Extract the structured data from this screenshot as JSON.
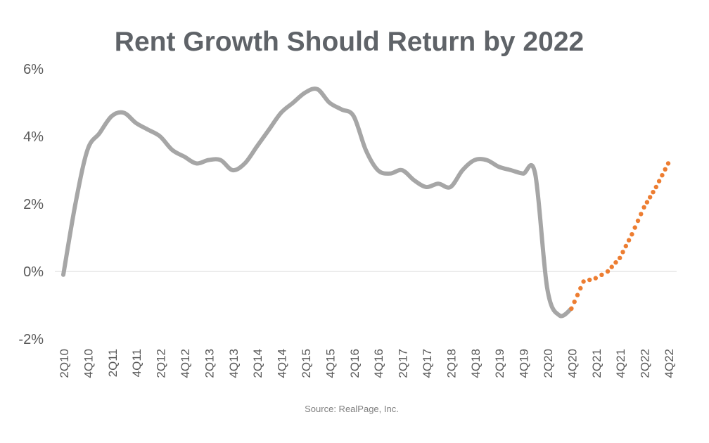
{
  "chart_data": {
    "type": "line",
    "title": "Rent Growth Should Return by 2022",
    "source": "Source: RealPage, Inc.",
    "xlabel": "",
    "ylabel": "",
    "ylim": [
      -2,
      6
    ],
    "y_ticks": [
      "6%",
      "4%",
      "2%",
      "0%",
      "-2%"
    ],
    "y_tick_values": [
      6,
      4,
      2,
      0,
      -2
    ],
    "x_tick_labels": [
      "2Q10",
      "4Q10",
      "2Q11",
      "4Q11",
      "2Q12",
      "4Q12",
      "2Q13",
      "4Q13",
      "2Q14",
      "4Q14",
      "2Q15",
      "4Q15",
      "2Q16",
      "4Q16",
      "2Q17",
      "4Q17",
      "2Q18",
      "4Q18",
      "2Q19",
      "4Q19",
      "2Q20",
      "4Q20",
      "2Q21",
      "4Q21",
      "2Q22",
      "4Q22"
    ],
    "grid": false,
    "zero_line": true,
    "legend": "none",
    "series": [
      {
        "style": "solid",
        "color": "#a6a6a6",
        "x": [
          "2Q10",
          "3Q10",
          "4Q10",
          "1Q11",
          "2Q11",
          "3Q11",
          "4Q11",
          "1Q12",
          "2Q12",
          "3Q12",
          "4Q12",
          "1Q13",
          "2Q13",
          "3Q13",
          "4Q13",
          "1Q14",
          "2Q14",
          "3Q14",
          "4Q14",
          "1Q15",
          "2Q15",
          "3Q15",
          "4Q15",
          "1Q16",
          "2Q16",
          "3Q16",
          "4Q16",
          "1Q17",
          "2Q17",
          "3Q17",
          "4Q17",
          "1Q18",
          "2Q18",
          "3Q18",
          "4Q18",
          "1Q19",
          "2Q19",
          "3Q19",
          "4Q19",
          "1Q20",
          "2Q20",
          "3Q20",
          "4Q20"
        ],
        "values": [
          -0.1,
          2.0,
          3.6,
          4.1,
          4.6,
          4.7,
          4.4,
          4.2,
          4.0,
          3.6,
          3.4,
          3.2,
          3.3,
          3.3,
          3.0,
          3.2,
          3.7,
          4.2,
          4.7,
          5.0,
          5.3,
          5.4,
          5.0,
          4.8,
          4.6,
          3.6,
          3.0,
          2.9,
          3.0,
          2.7,
          2.5,
          2.6,
          2.5,
          3.0,
          3.3,
          3.3,
          3.1,
          3.0,
          2.9,
          2.9,
          -0.5,
          -1.3,
          -1.1
        ]
      },
      {
        "style": "dotted",
        "color": "#ed7d31",
        "x": [
          "4Q20",
          "1Q21",
          "2Q21",
          "3Q21",
          "4Q21",
          "1Q22",
          "2Q22",
          "3Q22",
          "4Q22"
        ],
        "values": [
          -1.1,
          -0.3,
          -0.2,
          0.0,
          0.4,
          1.1,
          1.9,
          2.5,
          3.2
        ]
      }
    ]
  }
}
